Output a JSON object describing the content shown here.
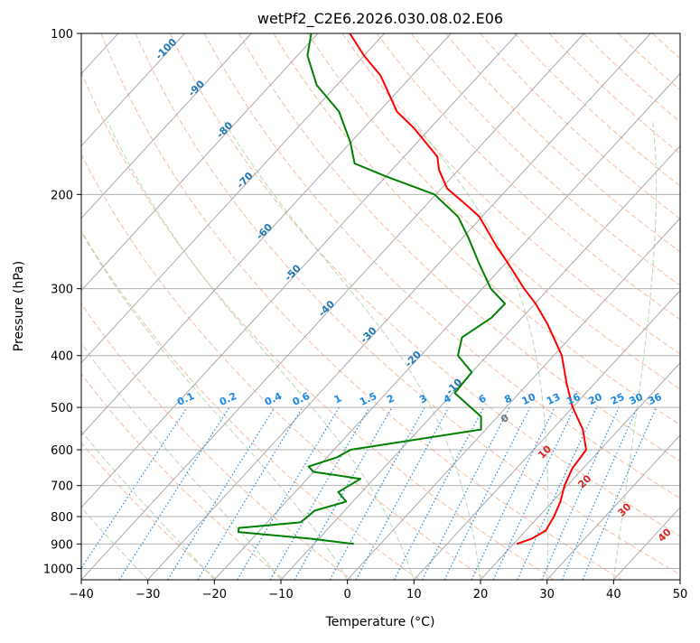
{
  "chart_data": {
    "type": "skew-t",
    "title": "wetPf2_C2E6.2026.030.08.02.E06",
    "xlabel": "Temperature (°C)",
    "ylabel": "Pressure (hPa)",
    "xlim": [
      -40,
      50
    ],
    "ylim_hpa": [
      1050,
      100
    ],
    "y_scale": "log",
    "grid": true,
    "x_ticks": [
      -40,
      -30,
      -20,
      -10,
      0,
      10,
      20,
      30,
      40,
      50
    ],
    "y_ticks": [
      100,
      200,
      300,
      400,
      500,
      600,
      700,
      800,
      900,
      1000
    ],
    "colors": {
      "temperature": "#ff0000",
      "dewpoint": "#008000",
      "isotherm_label": "#1f77b4",
      "mixing_ratio": "#1e88e5",
      "dry_adiabat": "#f4a582",
      "moist_adiabat": "#a6d4a6",
      "isotherm": "#aaaaaa",
      "wet_bulb_label": "#d62728",
      "grid": "#b0b0b0"
    },
    "series": [
      {
        "name": "temperature",
        "color": "#ff0000",
        "points": [
          {
            "p": 900,
            "t": 20.5
          },
          {
            "p": 880,
            "t": 22.0
          },
          {
            "p": 850,
            "t": 23.0
          },
          {
            "p": 800,
            "t": 22.3
          },
          {
            "p": 750,
            "t": 21.2
          },
          {
            "p": 700,
            "t": 19.6
          },
          {
            "p": 650,
            "t": 18.4
          },
          {
            "p": 600,
            "t": 17.9
          },
          {
            "p": 550,
            "t": 14.6
          },
          {
            "p": 500,
            "t": 10.0
          },
          {
            "p": 450,
            "t": 5.7
          },
          {
            "p": 400,
            "t": 1.2
          },
          {
            "p": 350,
            "t": -5.2
          },
          {
            "p": 320,
            "t": -9.9
          },
          {
            "p": 300,
            "t": -13.7
          },
          {
            "p": 270,
            "t": -19.4
          },
          {
            "p": 250,
            "t": -23.7
          },
          {
            "p": 220,
            "t": -30.4
          },
          {
            "p": 210,
            "t": -33.7
          },
          {
            "p": 195,
            "t": -39.1
          },
          {
            "p": 180,
            "t": -42.9
          },
          {
            "p": 170,
            "t": -45.0
          },
          {
            "p": 150,
            "t": -52.6
          },
          {
            "p": 140,
            "t": -57.3
          },
          {
            "p": 120,
            "t": -64.7
          },
          {
            "p": 110,
            "t": -70.0
          },
          {
            "p": 100,
            "t": -75.2
          }
        ]
      },
      {
        "name": "dewpoint",
        "color": "#008000",
        "points": [
          {
            "p": 900,
            "t": -4.0
          },
          {
            "p": 880,
            "t": -11.0
          },
          {
            "p": 855,
            "t": -23.0
          },
          {
            "p": 840,
            "t": -23.5
          },
          {
            "p": 820,
            "t": -15.0
          },
          {
            "p": 800,
            "t": -14.7
          },
          {
            "p": 780,
            "t": -14.5
          },
          {
            "p": 750,
            "t": -11.0
          },
          {
            "p": 720,
            "t": -13.5
          },
          {
            "p": 680,
            "t": -12.0
          },
          {
            "p": 660,
            "t": -20.0
          },
          {
            "p": 645,
            "t": -21.5
          },
          {
            "p": 620,
            "t": -18.5
          },
          {
            "p": 600,
            "t": -17.5
          },
          {
            "p": 550,
            "t": -0.7
          },
          {
            "p": 520,
            "t": -2.5
          },
          {
            "p": 500,
            "t": -5.3
          },
          {
            "p": 470,
            "t": -9.7
          },
          {
            "p": 430,
            "t": -10.0
          },
          {
            "p": 400,
            "t": -14.4
          },
          {
            "p": 370,
            "t": -16.3
          },
          {
            "p": 340,
            "t": -14.6
          },
          {
            "p": 320,
            "t": -14.5
          },
          {
            "p": 300,
            "t": -18.7
          },
          {
            "p": 270,
            "t": -23.8
          },
          {
            "p": 240,
            "t": -29.3
          },
          {
            "p": 220,
            "t": -33.6
          },
          {
            "p": 200,
            "t": -40.2
          },
          {
            "p": 185,
            "t": -50.0
          },
          {
            "p": 175,
            "t": -56.5
          },
          {
            "p": 160,
            "t": -60.0
          },
          {
            "p": 140,
            "t": -66.0
          },
          {
            "p": 125,
            "t": -73.0
          },
          {
            "p": 110,
            "t": -78.5
          },
          {
            "p": 100,
            "t": -81.0
          }
        ]
      }
    ],
    "isotherm_labels": [
      -100,
      -90,
      -80,
      -70,
      -60,
      -50,
      -40,
      -30,
      -20,
      -10
    ],
    "mixing_ratio_labels": [
      "0.1",
      "0.2",
      "0.4",
      "0.6",
      "1",
      "1.5",
      "2",
      "3",
      "4",
      "6",
      "8",
      "10",
      "13",
      "16",
      "20",
      "25",
      "30",
      "36"
    ],
    "wet_bulb_labels": [
      "0",
      "10",
      "20",
      "30",
      "40"
    ]
  }
}
